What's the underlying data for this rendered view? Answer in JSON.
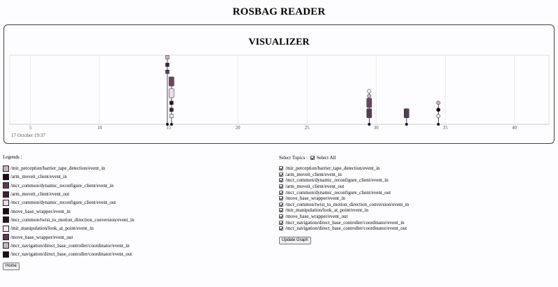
{
  "app": {
    "title": "ROSBAG READER"
  },
  "visualizer": {
    "title": "VISUALIZER",
    "date_label": "17 October 19:37",
    "axis": {
      "start": 3.5,
      "end": 42.5,
      "ticks": [
        5,
        10,
        15,
        20,
        25,
        30,
        35,
        40
      ],
      "tick_labels": [
        "5",
        "10",
        "15",
        "20",
        "25",
        "30",
        "35",
        "40"
      ]
    },
    "grid": true,
    "events": [
      {
        "x": 14.9,
        "shape": "square",
        "color": "#c7b3c3",
        "level": 0.97
      },
      {
        "x": 14.9,
        "shape": "square",
        "color": "#3a2138",
        "level": 0.86
      },
      {
        "x": 14.9,
        "shape": "square",
        "color": "#5a3b58",
        "level": 0.76
      },
      {
        "x": 15.2,
        "shape": "rect",
        "color": "#6b4767",
        "level": 0.62
      },
      {
        "x": 15.2,
        "shape": "rect",
        "color": "#f0d9ea",
        "level": 0.45
      },
      {
        "x": 15.2,
        "shape": "square",
        "color": "#2a1026",
        "level": 0.31
      },
      {
        "x": 15.2,
        "shape": "square",
        "color": "#3a2138",
        "level": 0.21
      },
      {
        "x": 15.2,
        "shape": "square",
        "color": "#f4e6f0",
        "level": 0.12
      },
      {
        "x": 29.5,
        "shape": "circle",
        "color": "#f4e6f0",
        "level": 0.48
      },
      {
        "x": 29.5,
        "shape": "circle",
        "color": "#c7b3c3",
        "level": 0.41
      },
      {
        "x": 29.5,
        "shape": "rect",
        "color": "#6b4767",
        "level": 0.31
      },
      {
        "x": 29.5,
        "shape": "rect",
        "color": "#5a3b58",
        "level": 0.16
      },
      {
        "x": 32.2,
        "shape": "rect",
        "color": "#5a3b58",
        "level": 0.16
      },
      {
        "x": 34.5,
        "shape": "circle",
        "color": "#c7b3c3",
        "level": 0.31
      },
      {
        "x": 34.5,
        "shape": "circle",
        "color": "#1a0b18",
        "level": 0.21
      },
      {
        "x": 34.5,
        "shape": "circle",
        "color": "#f0d9ea",
        "level": 0.12
      }
    ],
    "stems": [
      14.9,
      15.2,
      29.5,
      32.2,
      34.5
    ]
  },
  "legends": {
    "title": "Legends :",
    "items": [
      {
        "label": "/mir_perception/barrier_tape_detection/event_in",
        "color": "#c7b3c3"
      },
      {
        "label": "/arm_moveit_client/event_in",
        "color": "#1a0b18"
      },
      {
        "label": "/mcr_common/dynamic_reconfigure_client/event_in",
        "color": "#5a3b58"
      },
      {
        "label": "/arm_moveit_client/event_out",
        "color": "#3a2138"
      },
      {
        "label": "/mcr_common/dynamic_reconfigure_client/event_out",
        "color": "#f0d9ea"
      },
      {
        "label": "/move_base_wrapper/event_in",
        "color": "#1a0b18"
      },
      {
        "label": "/mcr_common/twist_to_motion_direction_conversion/event_in",
        "color": "#2a1026"
      },
      {
        "label": "/mir_manipulation/look_at_point/event_in",
        "color": "#f4e6f0"
      },
      {
        "label": "/move_base_wrapper/event_out",
        "color": "#5a3b58"
      },
      {
        "label": "/mcr_navigation/direct_base_controller/coordinator/event_in",
        "color": "#c7b3c3"
      },
      {
        "label": "/mcr_navigation/direct_base_controller/coordinator/event_out",
        "color": "#1a0b18"
      }
    ]
  },
  "topics": {
    "select_label": "Select Topics :",
    "select_all_label": "Select All",
    "items": [
      "/mir_perception/barrier_tape_detection/event_in",
      "/arm_moveit_client/event_in",
      "/mcr_common/dynamic_reconfigure_client/event_in",
      "/arm_moveit_client/event_out",
      "/mcr_common/dynamic_reconfigure_client/event_out",
      "/move_base_wrapper/event_in",
      "/mcr_common/twist_to_motion_direction_conversion/event_in",
      "/mir_manipulation/look_at_point/event_in",
      "/move_base_wrapper/event_out",
      "/mcr_navigation/direct_base_controller/coordinator/event_in",
      "/mcr_navigation/direct_base_controller/coordinator/event_out"
    ],
    "update_button": "Update Graph"
  },
  "home_button": "Home"
}
